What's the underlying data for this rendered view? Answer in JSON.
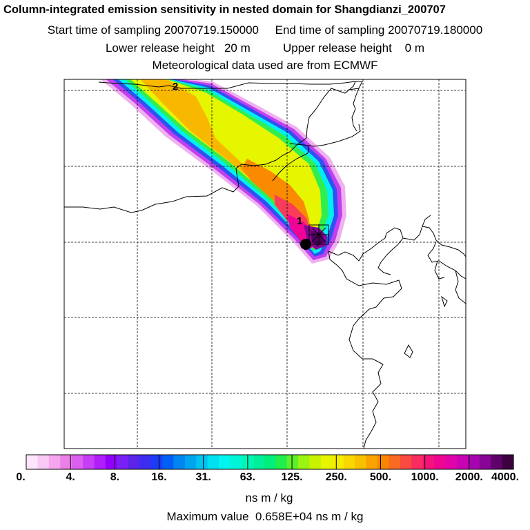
{
  "header": {
    "title": "Column-integrated emission sensitivity in nested domain for Shangdianzi_200707",
    "line2": "Start time of sampling 20070719.150000     End time of sampling 20070719.180000",
    "line3": "Lower release height   20 m          Upper release height    0 m",
    "line4": "Meteorological data used are from ECMWF"
  },
  "map": {
    "contour_labels": [
      "2",
      "1"
    ],
    "receptor_marker": "filled-circle",
    "source_marker": "cross"
  },
  "colorbar": {
    "ticks": [
      "0.",
      "4.",
      "8.",
      "16.",
      "31.",
      "63.",
      "125.",
      "250.",
      "500.",
      "1000.",
      "2000.",
      "4000."
    ],
    "colors": [
      "#fde6fb",
      "#fac8f5",
      "#f5a6ef",
      "#ea80e8",
      "#dc5ff0",
      "#c83ef7",
      "#b01ffa",
      "#9300fa",
      "#7820f5",
      "#5a25e8",
      "#3c2df0",
      "#1c3cf5",
      "#0060f5",
      "#0084f2",
      "#00a5f0",
      "#00c3f0",
      "#00e0f0",
      "#00f5f0",
      "#00f5d8",
      "#00f5b8",
      "#00f09a",
      "#00ee7a",
      "#20ee4a",
      "#5ef028",
      "#9af510",
      "#c8f300",
      "#e8f500",
      "#f5ed00",
      "#f8d800",
      "#f9c000",
      "#faa300",
      "#fa8500",
      "#fa6a20",
      "#fa4a40",
      "#f82c60",
      "#f5127a",
      "#ee0592",
      "#e203a8",
      "#c803b4",
      "#a803b0",
      "#880598",
      "#60006a",
      "#3c0040"
    ],
    "units": "ns m / kg"
  },
  "footer": {
    "max_value": "Maximum value  0.658E+04 ns m / kg"
  }
}
